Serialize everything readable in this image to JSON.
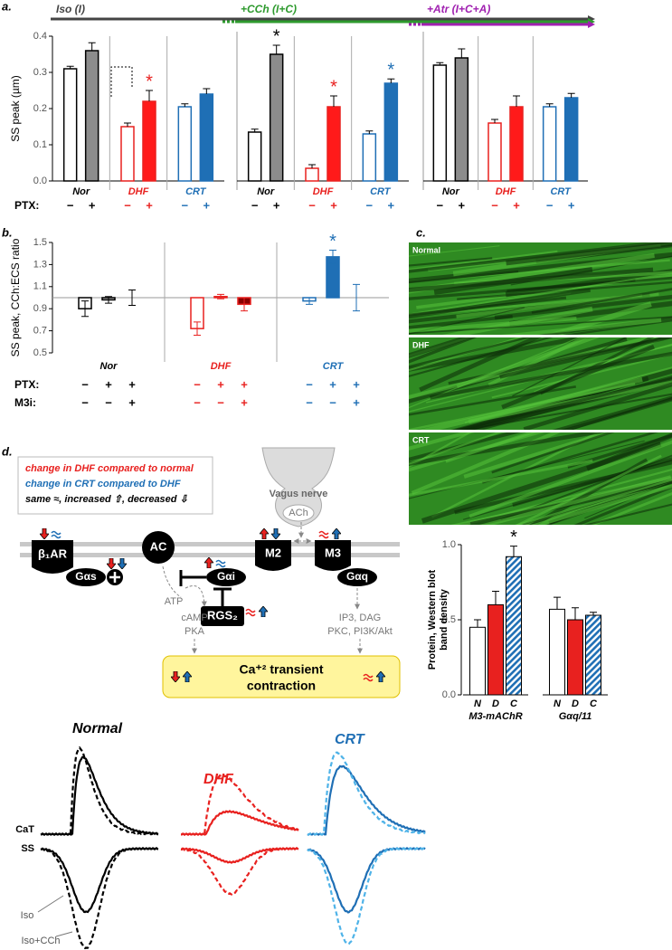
{
  "panel_labels": [
    "a.",
    "b.",
    "c.",
    "d."
  ],
  "chart_data": [
    {
      "type": "bar",
      "title": "Iso (I)",
      "title_color": "#444444",
      "ylabel": "SS peak (µm)",
      "ylim": [
        0,
        0.4
      ],
      "yticks": [
        {
          "value": 0,
          "label": "0.0"
        },
        0.1,
        0.2,
        0.3,
        0.4
      ],
      "row_label": "PTX:",
      "categories": [
        "Nor",
        "DHF",
        "CRT"
      ],
      "category_colors": [
        "#000000",
        "#e8211f",
        "#1f6fb5"
      ],
      "series": [
        {
          "name": "−",
          "values": [
            0.31,
            0.15,
            0.205
          ],
          "errors": [
            0.007,
            0.01,
            0.008
          ],
          "fills": [
            "#ffffff",
            "#ffffff",
            "#ffffff"
          ]
        },
        {
          "name": "+",
          "values": [
            0.36,
            0.22,
            0.24
          ],
          "errors": [
            0.022,
            0.03,
            0.015
          ],
          "fills": [
            "#8c8c8c",
            "#ff1a1a",
            "#1f6fb5"
          ],
          "value_labels": [
            null,
            "*",
            null
          ]
        }
      ]
    },
    {
      "type": "bar",
      "title": "+CCh (I+C)",
      "title_color": "#2e9a2e",
      "ylim": [
        0,
        0.4
      ],
      "categories": [
        "Nor",
        "DHF",
        "CRT"
      ],
      "category_colors": [
        "#000000",
        "#e8211f",
        "#1f6fb5"
      ],
      "series": [
        {
          "name": "−",
          "values": [
            0.135,
            0.035,
            0.13
          ],
          "errors": [
            0.008,
            0.01,
            0.008
          ],
          "fills": [
            "#ffffff",
            "#ffffff",
            "#ffffff"
          ]
        },
        {
          "name": "+",
          "values": [
            0.35,
            0.205,
            0.27
          ],
          "errors": [
            0.025,
            0.03,
            0.012
          ],
          "fills": [
            "#8c8c8c",
            "#ff1a1a",
            "#1f6fb5"
          ],
          "value_labels": [
            "*",
            "*",
            "*"
          ]
        }
      ]
    },
    {
      "type": "bar",
      "title": "+Atr (I+C+A)",
      "title_color": "#a020b0",
      "ylim": [
        0,
        0.4
      ],
      "categories": [
        "Nor",
        "DHF",
        "CRT"
      ],
      "category_colors": [
        "#000000",
        "#e8211f",
        "#1f6fb5"
      ],
      "series": [
        {
          "name": "−",
          "values": [
            0.32,
            0.16,
            0.205
          ],
          "errors": [
            0.007,
            0.01,
            0.008
          ],
          "fills": [
            "#ffffff",
            "#ffffff",
            "#ffffff"
          ]
        },
        {
          "name": "+",
          "values": [
            0.34,
            0.205,
            0.23
          ],
          "errors": [
            0.025,
            0.03,
            0.012
          ],
          "fills": [
            "#8c8c8c",
            "#ff1a1a",
            "#1f6fb5"
          ]
        }
      ]
    },
    {
      "type": "bar",
      "ylabel": "SS peak, CCh:ECS ratio",
      "ylim": [
        0.5,
        1.5
      ],
      "yticks": [
        0.5,
        0.7,
        0.9,
        1.1,
        1.3,
        1.5
      ],
      "reference_line": 1,
      "categories": [
        "Nor",
        "DHF",
        "CRT"
      ],
      "category_colors": [
        "#000000",
        "#e8211f",
        "#1f6fb5"
      ],
      "rows": [
        {
          "label": "PTX:",
          "signs": [
            "−",
            "+",
            "+"
          ]
        },
        {
          "label": "M3i:",
          "signs": [
            "−",
            "−",
            "+"
          ]
        }
      ],
      "series": [
        {
          "values": [
            0.9,
            0.72,
            0.97
          ],
          "errors": [
            0.07,
            0.06,
            0.03
          ],
          "fills": [
            "#ffffff",
            "#ffffff",
            "#ffffff"
          ]
        },
        {
          "values": [
            0.98,
            1.01,
            1.37
          ],
          "errors": [
            0.03,
            0.02,
            0.06
          ],
          "fills": [
            "#bfbfbf",
            "#f08080",
            "#1f6fb5"
          ],
          "value_labels": [
            null,
            null,
            "*"
          ]
        },
        {
          "values": [
            1.0,
            0.94,
            1.0
          ],
          "errors": [
            0.07,
            0.06,
            0.12
          ],
          "fills": [
            "#404040",
            "#8b0000",
            "#1f6fb5"
          ]
        }
      ]
    },
    {
      "type": "bar",
      "ylabel": [
        "Protein, Western blot",
        "band density"
      ],
      "ylim": [
        0,
        1
      ],
      "yticks": [
        {
          "value": 0,
          "label": "0.0"
        },
        0.5,
        {
          "value": 1,
          "label": "1.0"
        }
      ],
      "categories": [
        "N",
        "D",
        "C"
      ],
      "fills": [
        "#ffffff",
        "#e8211f",
        "#1f6fb5"
      ],
      "hatched": [
        false,
        false,
        true
      ],
      "series": [
        {
          "name": "M3-mAChR",
          "values": [
            0.45,
            0.6,
            0.92
          ],
          "errors": [
            0.05,
            0.09,
            0.07
          ],
          "value_labels": [
            null,
            null,
            "*"
          ]
        },
        {
          "name": "Gαq/11",
          "values": [
            0.57,
            0.5,
            0.53
          ],
          "errors": [
            0.08,
            0.08,
            0.02
          ]
        }
      ]
    }
  ],
  "micrographs": {
    "labels": [
      "Normal",
      "DHF",
      "CRT"
    ]
  },
  "diagram": {
    "legend": [
      "change in DHF compared to normal",
      "change in CRT compared to DHF",
      "same ≈, increased ⇧, decreased ⇩"
    ],
    "nodes": [
      "β₁AR",
      "Gαs",
      "AC",
      "Gαi",
      "M2",
      "M3",
      "Gαq",
      "RGS₂",
      "ATP",
      "cAMP",
      "PKA",
      "IP3, DAG",
      "PKC, PI3K/Akt",
      "Vagus nerve",
      "ACh",
      "Ca⁺² transient",
      "contraction"
    ]
  },
  "traces": {
    "titles": [
      "Normal",
      "DHF",
      "CRT"
    ],
    "rows": [
      "CaT",
      "SS"
    ],
    "legend": [
      "Iso",
      "Iso+CCh"
    ]
  }
}
